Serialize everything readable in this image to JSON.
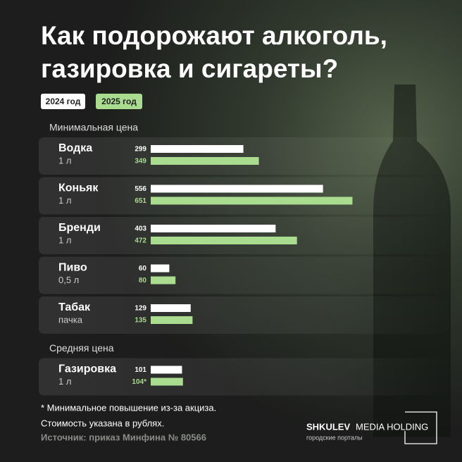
{
  "chart_data": {
    "type": "bar",
    "title": [
      "Как подорожают алкоголь,",
      "газировка и сигареты?"
    ],
    "series": [
      {
        "name": "2024 год",
        "color": "#ffffff"
      },
      {
        "name": "2025 год",
        "color": "#a9dc8f"
      }
    ],
    "groups": [
      {
        "label": "Минимальная цена",
        "categories": [
          "Водка",
          "Коньяк",
          "Бренди",
          "Пиво",
          "Табак"
        ],
        "units": [
          "1 л",
          "1 л",
          "1 л",
          "0,5 л",
          "пачка"
        ],
        "series_values": [
          [
            299,
            556,
            403,
            60,
            129
          ],
          [
            349,
            651,
            472,
            80,
            135
          ]
        ]
      },
      {
        "label": "Средняя цена",
        "categories": [
          "Газировка"
        ],
        "units": [
          "1 л"
        ],
        "series_values": [
          [
            101
          ],
          [
            104
          ]
        ],
        "value_labels": [
          [
            "101"
          ],
          [
            "104*"
          ]
        ]
      }
    ]
  },
  "footnotes": [
    "* Минимальное повышение из-за акциза.",
    "Стоимость указана в рублях."
  ],
  "source": "Источник: приказ Минфина № 80566",
  "brand": {
    "name": "SHKULEV",
    "suffix": "MEDIA HOLDING",
    "tagline": "городские порталы"
  }
}
